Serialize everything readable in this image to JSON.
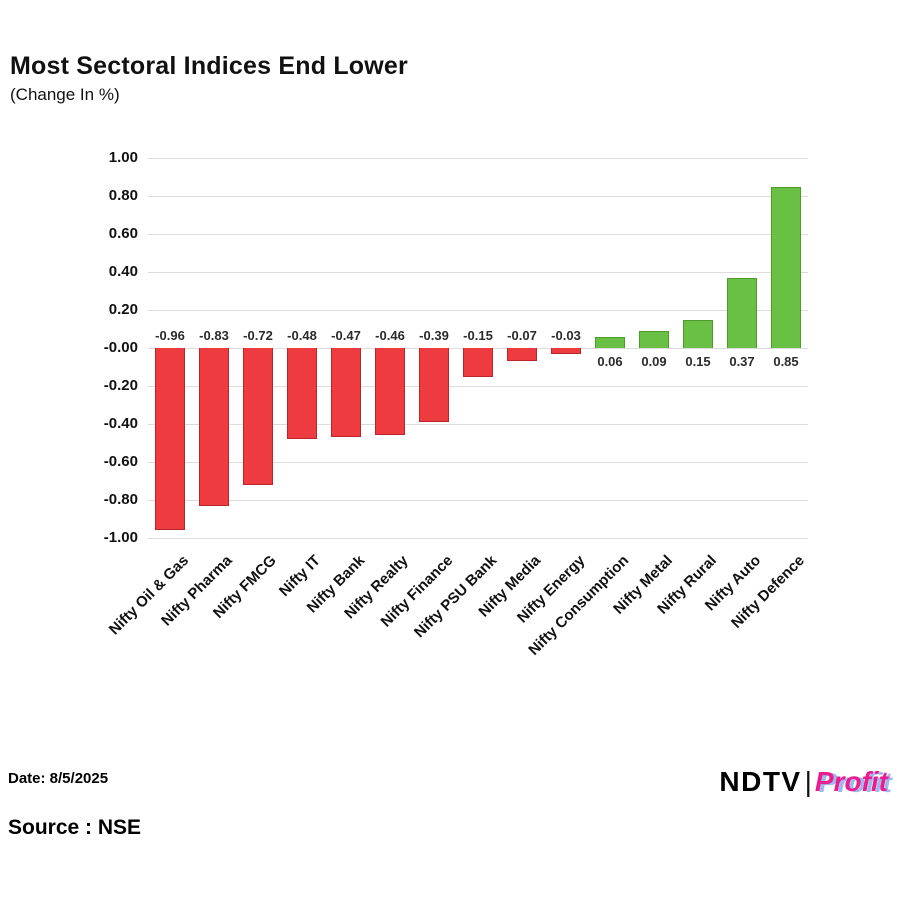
{
  "title": "Most Sectoral Indices End Lower",
  "subtitle": "(Change In %)",
  "chart_data": {
    "type": "bar",
    "title": "Most Sectoral Indices End Lower",
    "subtitle": "(Change In %)",
    "xlabel": "",
    "ylabel": "",
    "categories": [
      "Nifty Oil & Gas",
      "Nifty Pharma",
      "Nifty FMCG",
      "Nifty IT",
      "Nifty Bank",
      "Nifty Realty",
      "Nifty Finance",
      "Nifty PSU Bank",
      "Nifty Media",
      "Nifty Energy",
      "Nifty Consumption",
      "Nifty Metal",
      "Nifty Rural",
      "Nifty Auto",
      "Nifty Defence"
    ],
    "values": [
      -0.96,
      -0.83,
      -0.72,
      -0.48,
      -0.47,
      -0.46,
      -0.39,
      -0.15,
      -0.07,
      -0.03,
      0.06,
      0.09,
      0.15,
      0.37,
      0.85
    ],
    "labels": [
      "-0.96",
      "-0.83",
      "-0.72",
      "-0.48",
      "-0.47",
      "-0.46",
      "-0.39",
      "-0.15",
      "-0.07",
      "-0.03",
      "0.06",
      "0.09",
      "0.15",
      "0.37",
      "0.85"
    ],
    "y_ticks": [
      "1.00",
      "0.80",
      "0.60",
      "0.40",
      "0.20",
      "-0.00",
      "-0.20",
      "-0.40",
      "-0.60",
      "-0.80",
      "-1.00"
    ],
    "y_tick_values": [
      1.0,
      0.8,
      0.6,
      0.4,
      0.2,
      0.0,
      -0.2,
      -0.4,
      -0.6,
      -0.8,
      -1.0
    ],
    "ylim": [
      -1.0,
      1.0
    ],
    "grid": true,
    "legend": "none",
    "colors": {
      "negative": "#ee3b3f",
      "positive": "#6abf45",
      "gridline": "#dcdcdc",
      "value_label": "#2b2b2b"
    }
  },
  "footer": {
    "date": "Date: 8/5/2025",
    "source": "Source : NSE",
    "logo_ndtv": "NDTV",
    "logo_separator": "|",
    "logo_profit": "Profit",
    "logo_profit_color": "#ec1d8e"
  }
}
